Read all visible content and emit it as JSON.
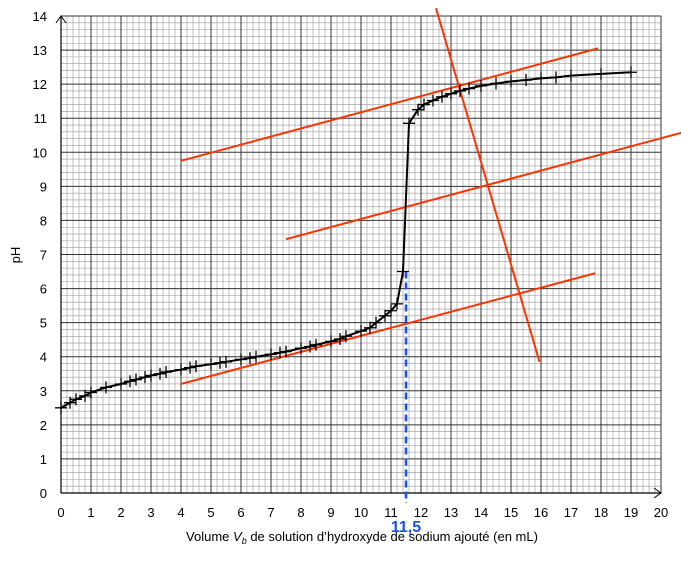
{
  "chart_data": {
    "type": "scatter",
    "ylabel": "pH",
    "xlabel": {
      "pre": "Volume ",
      "var": "V",
      "sub": "b",
      "post": " de solution d’hydroxyde de sodium ajouté (en mL)"
    },
    "xlim": [
      0,
      20
    ],
    "ylim": [
      0,
      14
    ],
    "xticks": [
      0,
      1,
      2,
      3,
      4,
      5,
      6,
      7,
      8,
      9,
      10,
      11,
      12,
      13,
      14,
      15,
      16,
      17,
      18,
      19,
      20
    ],
    "yticks": [
      0,
      1,
      2,
      3,
      4,
      5,
      6,
      7,
      8,
      9,
      10,
      11,
      12,
      13,
      14
    ],
    "grid": true,
    "minor_divisions": 5,
    "marker_color": "#000000",
    "curve_color": "#000000",
    "x": [
      0,
      0.3,
      0.5,
      0.8,
      1,
      1.5,
      2,
      2.3,
      2.5,
      2.8,
      3,
      3.3,
      3.5,
      4,
      4.3,
      4.5,
      5,
      5.3,
      5.5,
      6,
      6.3,
      6.5,
      7,
      7.3,
      7.5,
      8,
      8.3,
      8.5,
      9,
      9.3,
      9.5,
      10,
      10.3,
      10.5,
      10.8,
      11,
      11.2,
      11.4,
      11.6,
      11.9,
      12.1,
      12.4,
      12.7,
      13,
      13.3,
      13.6,
      14,
      14.5,
      15,
      15.5,
      16,
      16.5,
      17,
      18,
      19
    ],
    "values": [
      2.5,
      2.65,
      2.75,
      2.85,
      2.95,
      3.1,
      3.2,
      3.28,
      3.33,
      3.4,
      3.45,
      3.5,
      3.55,
      3.62,
      3.68,
      3.72,
      3.78,
      3.82,
      3.85,
      3.92,
      3.96,
      4.0,
      4.07,
      4.12,
      4.15,
      4.25,
      4.3,
      4.35,
      4.45,
      4.52,
      4.6,
      4.75,
      4.85,
      5.0,
      5.2,
      5.35,
      5.55,
      6.5,
      10.85,
      11.25,
      11.4,
      11.52,
      11.63,
      11.72,
      11.8,
      11.87,
      11.95,
      12.02,
      12.08,
      12.12,
      12.17,
      12.2,
      12.25,
      12.3,
      12.35
    ],
    "tangent_color": "#ff3300",
    "tangent_lines": [
      {
        "x": [
          4,
          17.8
        ],
        "y": [
          3.2,
          6.45
        ]
      },
      {
        "x": [
          4,
          17.9
        ],
        "y": [
          9.75,
          13.05
        ]
      },
      {
        "x": [
          7.5,
          20.67
        ],
        "y": [
          7.45,
          10.57
        ]
      },
      {
        "x": [
          12.5,
          15.95
        ],
        "y": [
          14.23,
          3.85
        ]
      }
    ],
    "equivalence": {
      "x": 11.5,
      "y": 6.5,
      "label": "11,5",
      "color": "#1a4fff"
    }
  }
}
